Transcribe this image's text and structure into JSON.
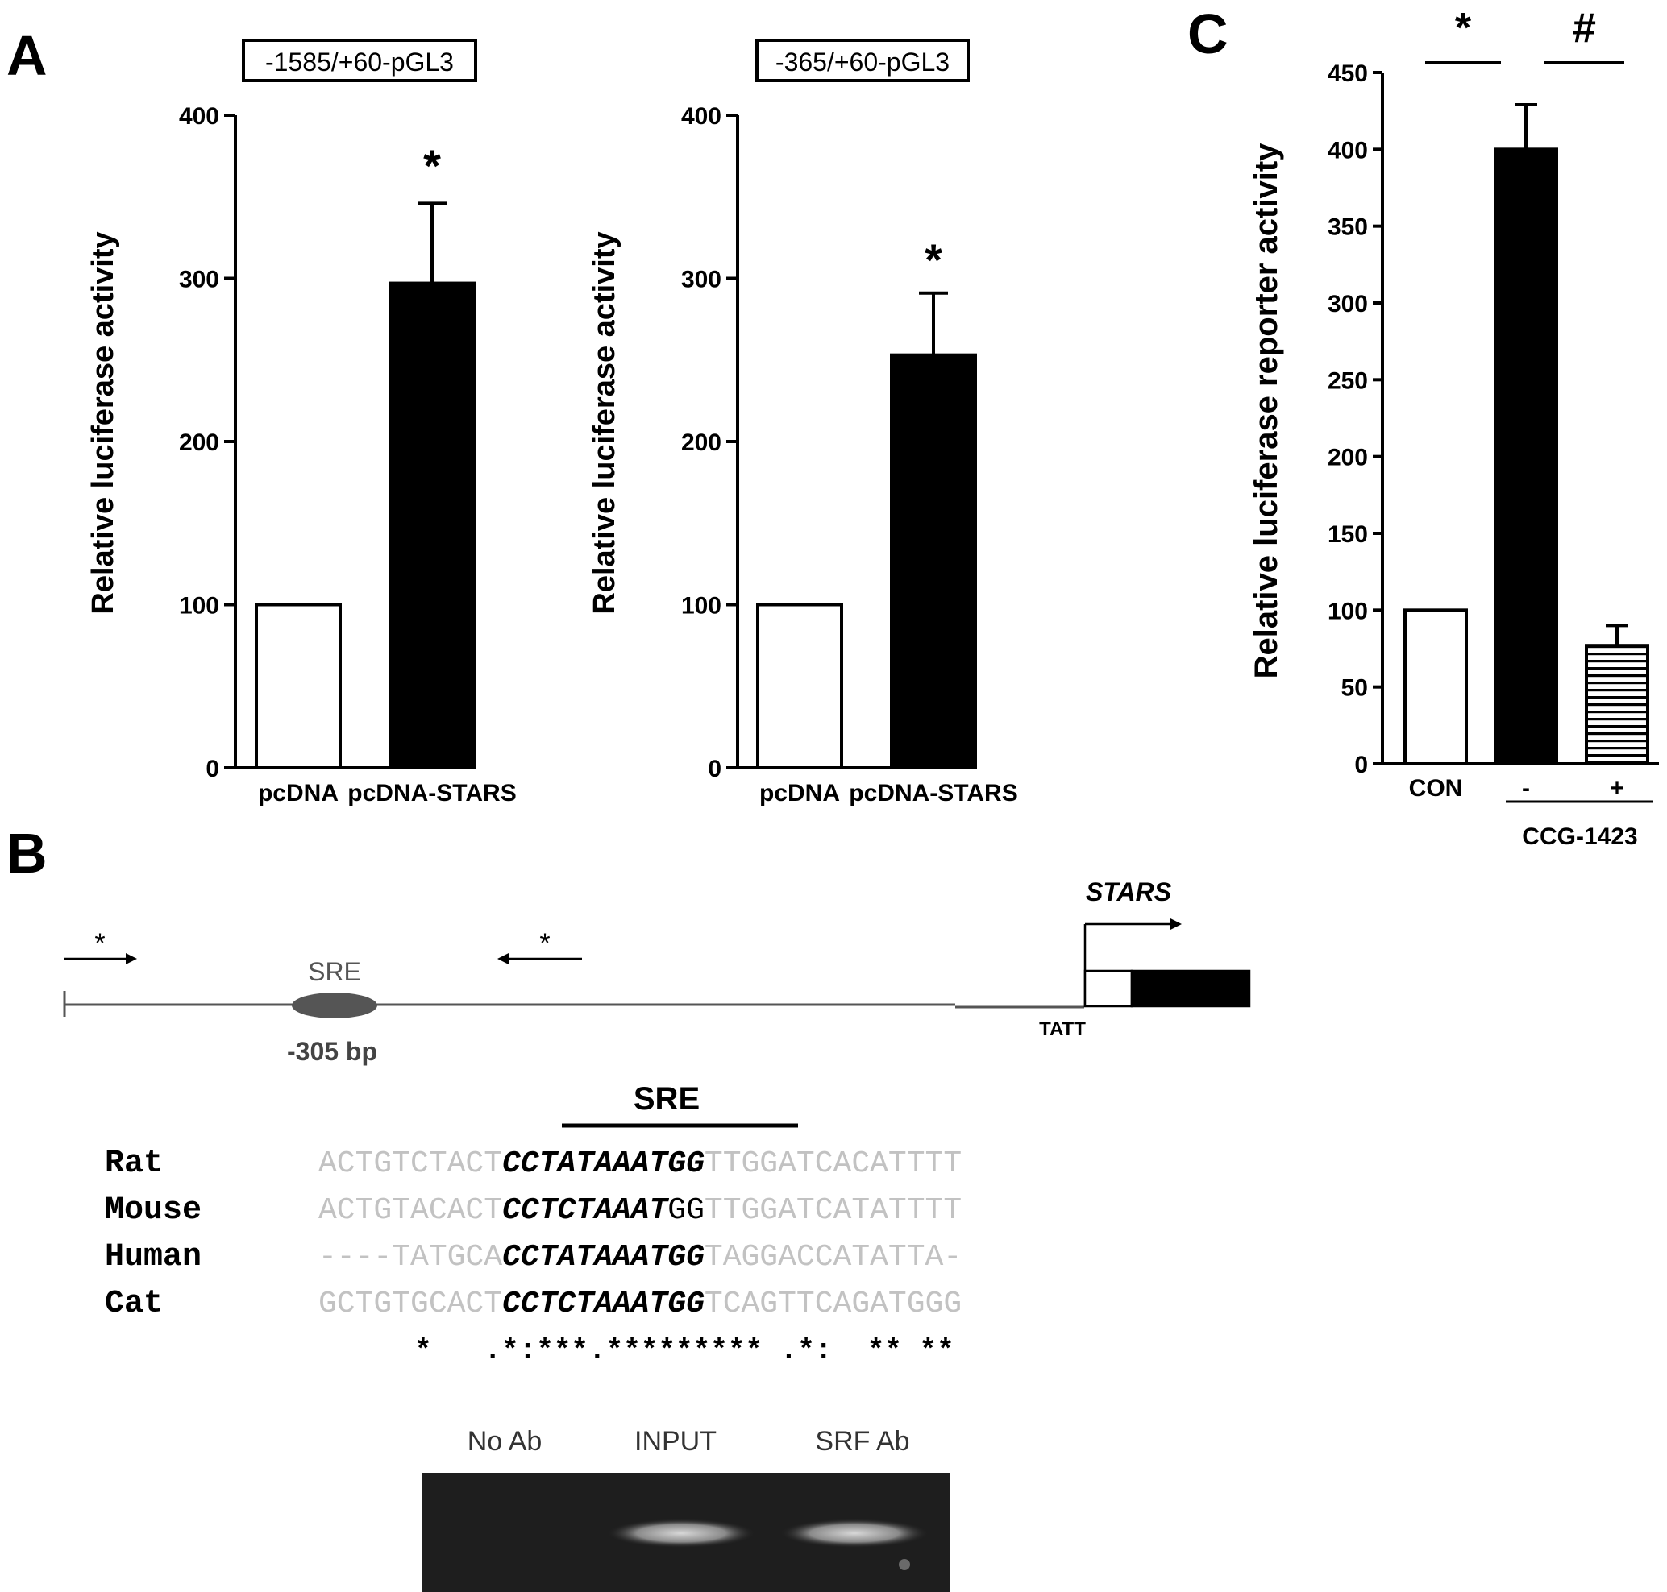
{
  "panels": {
    "A": "A",
    "B": "B",
    "C": "C"
  },
  "chart_data": [
    {
      "type": "bar",
      "panel": "A",
      "title": "-1585/+60-pGL3",
      "ylabel": "Relative luciferase activity",
      "ylim": [
        0,
        400
      ],
      "yticks": [
        "0",
        "100",
        "200",
        "300",
        "400"
      ],
      "categories": [
        "pcDNA",
        "pcDNA-STARS"
      ],
      "values": [
        100,
        297
      ],
      "errors": [
        0,
        49
      ],
      "bar_fill": [
        "#ffffff",
        "#000000"
      ],
      "significance": [
        "",
        "*"
      ]
    },
    {
      "type": "bar",
      "panel": "A",
      "title": "-365/+60-pGL3",
      "ylabel": "Relative luciferase activity",
      "ylim": [
        0,
        400
      ],
      "yticks": [
        "0",
        "100",
        "200",
        "300",
        "400"
      ],
      "categories": [
        "pcDNA",
        "pcDNA-STARS"
      ],
      "values": [
        100,
        253
      ],
      "errors": [
        0,
        38
      ],
      "bar_fill": [
        "#ffffff",
        "#000000"
      ],
      "significance": [
        "",
        "*"
      ]
    },
    {
      "type": "bar",
      "panel": "C",
      "ylabel": "Relative luciferase reporter activity",
      "ylim": [
        0,
        450
      ],
      "yticks": [
        "0",
        "50",
        "100",
        "150",
        "200",
        "250",
        "300",
        "350",
        "400",
        "450"
      ],
      "categories": [
        "CON",
        "-",
        "+"
      ],
      "group_label": "CCG-1423",
      "values": [
        100,
        400,
        77
      ],
      "errors": [
        0,
        29,
        13
      ],
      "bar_fill": [
        "white",
        "black",
        "horizontal-stripes"
      ],
      "brackets": [
        "*",
        "#"
      ]
    }
  ],
  "schematic": {
    "star_left": "*",
    "star_right": "*",
    "sre_label": "SRE",
    "position_label": "-305 bp",
    "tatt_label": "TATT",
    "gene_label": "STARS"
  },
  "alignment": {
    "header": "SRE",
    "rows": [
      {
        "species": "Rat",
        "left": "ACTGTCTACT",
        "core": "CCTATAAATGG",
        "core_tail": "",
        "right": "TTGGATCACATTTT"
      },
      {
        "species": "Mouse",
        "left": "ACTGTACACT",
        "core": "CCTCTAAAT",
        "core_tail": "GG",
        "right": "TTGGATCATATTTT"
      },
      {
        "species": "Human",
        "left": "----TATGCA",
        "core": "CCTATAAATGG",
        "core_tail": "",
        "right": "TAGGACCATATTA-"
      },
      {
        "species": "Cat",
        "left": "GCTGTGCACT",
        "core": "CCTCTAAATGG",
        "core_tail": "",
        "right": "TCAGTTCAGATGGG"
      }
    ],
    "consensus": "*   .*:***.********* .*:  ** **"
  },
  "gel": {
    "lanes": [
      "No Ab",
      "INPUT",
      "SRF Ab"
    ],
    "band_present": [
      false,
      true,
      true
    ]
  }
}
